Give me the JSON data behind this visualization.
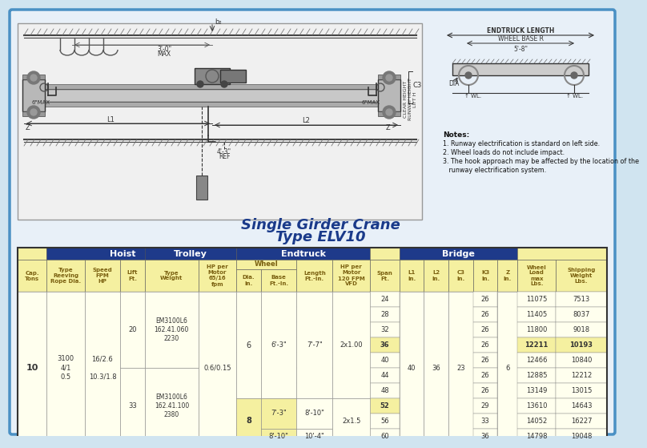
{
  "bg_color": "#d0e4f0",
  "inner_bg": "#e8f0f8",
  "border_color": "#4a90c4",
  "title_color": "#1a3a8a",
  "header1_bg": "#1e3a8a",
  "header1_fg": "#ffffff",
  "header2_bg": "#f5f0a0",
  "header2_fg": "#7a6010",
  "data_bg": "#ffffee",
  "hilite_bg": "#f5f0a0",
  "notes": [
    "Notes:",
    "1. Runway electrification is standard on left side.",
    "2. Wheel loads do not include impact.",
    "3. The hook approach may be affected by the location of the",
    "   runway electrification system."
  ],
  "spans": [
    24,
    28,
    32,
    36,
    40,
    44,
    48,
    52,
    56,
    60
  ],
  "k3": [
    26,
    26,
    26,
    26,
    26,
    26,
    26,
    29,
    33,
    36
  ],
  "wheel_load": [
    11075,
    11405,
    11800,
    12211,
    12466,
    12885,
    13149,
    13610,
    14052,
    14798
  ],
  "shipping": [
    7513,
    8037,
    9018,
    10193,
    10840,
    12212,
    13015,
    14643,
    16227,
    19048
  ]
}
